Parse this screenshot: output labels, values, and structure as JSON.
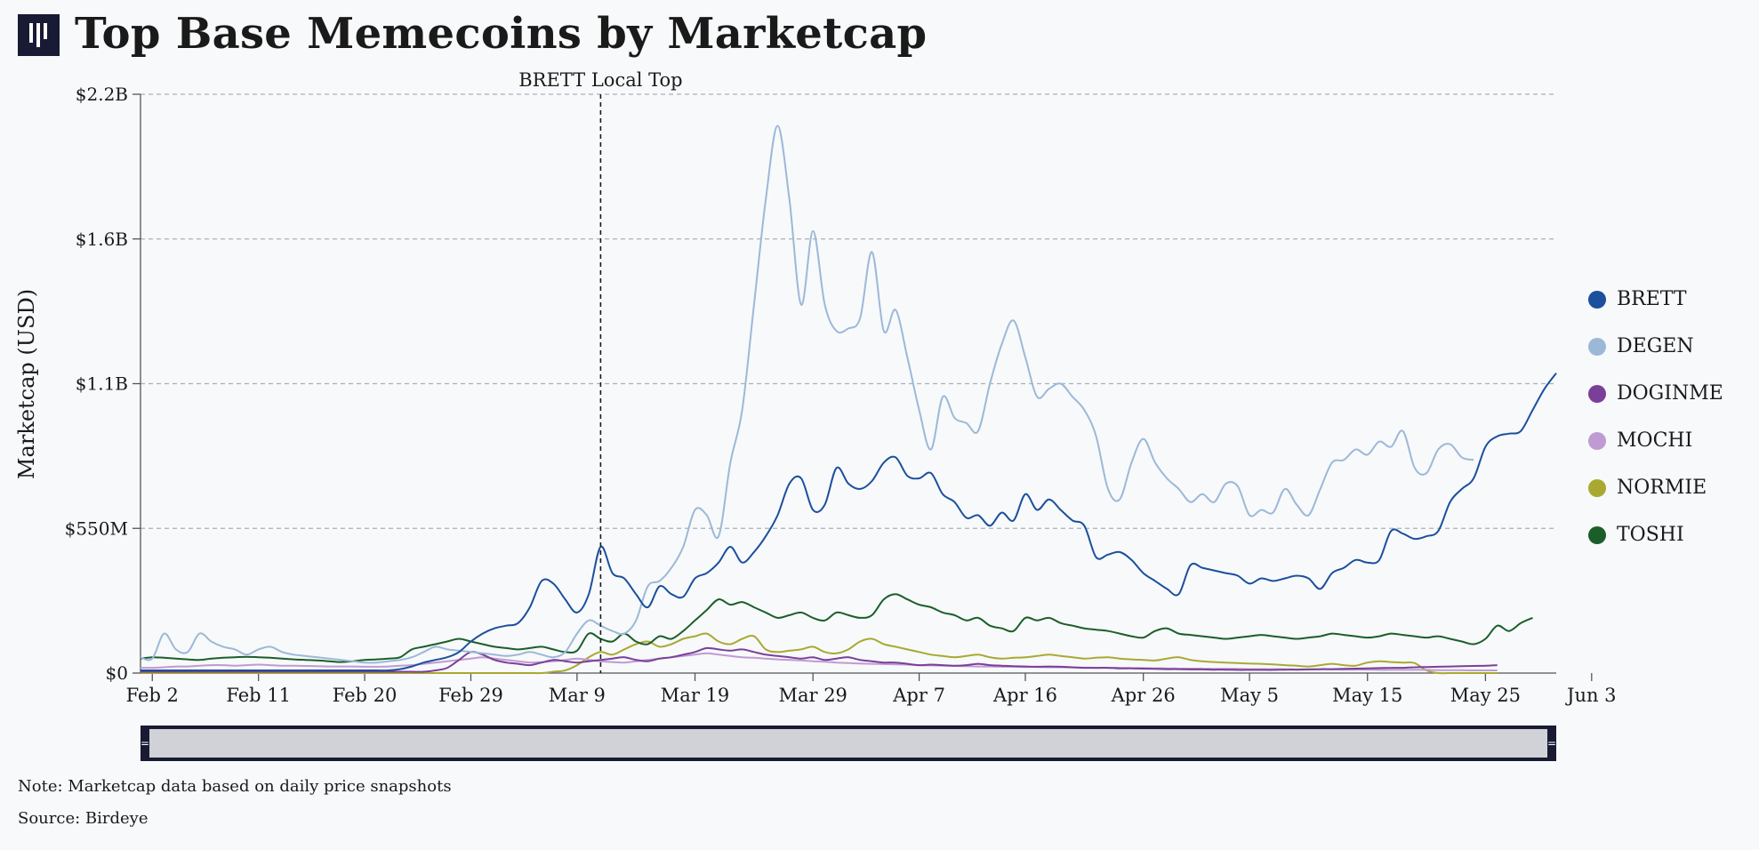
{
  "title": "Top Base Memecoins by Marketcap",
  "note": "Note: Marketcap data based on daily price snapshots",
  "source": "Source: Birdeye",
  "chart_data": {
    "type": "line",
    "title": "Top Base Memecoins by Marketcap",
    "ylabel": "Marketcap (USD)",
    "xlabel": "",
    "ylim": [
      0,
      2200000000
    ],
    "y_ticks": [
      {
        "value": 0,
        "label": "$0"
      },
      {
        "value": 550000000,
        "label": "$550M"
      },
      {
        "value": 1100000000,
        "label": "$1.1B"
      },
      {
        "value": 1650000000,
        "label": "$1.6B"
      },
      {
        "value": 2200000000,
        "label": "$2.2B"
      }
    ],
    "x_start": "2024-02-01",
    "x_ticks": [
      "Feb 2",
      "Feb 11",
      "Feb 20",
      "Feb 29",
      "Mar 9",
      "Mar 19",
      "Mar 29",
      "Apr 7",
      "Apr 16",
      "Apr 26",
      "May 5",
      "May 15",
      "May 25",
      "Jun 3"
    ],
    "grid": "horizontal dashed",
    "legend_position": "right",
    "annotation": {
      "date": "2024-03-11",
      "label": "BRETT Local Top"
    },
    "series": [
      {
        "name": "BRETT",
        "color": "#1c4f9c",
        "values": [
          10000000,
          10000000,
          10000000,
          10000000,
          10000000,
          10000000,
          10000000,
          10000000,
          10000000,
          10000000,
          10000000,
          10000000,
          10000000,
          10000000,
          10000000,
          10000000,
          10000000,
          10000000,
          10000000,
          10000000,
          10000000,
          10000000,
          15000000,
          25000000,
          40000000,
          50000000,
          60000000,
          80000000,
          120000000,
          150000000,
          170000000,
          180000000,
          190000000,
          250000000,
          350000000,
          340000000,
          280000000,
          230000000,
          300000000,
          480000000,
          380000000,
          360000000,
          300000000,
          250000000,
          330000000,
          300000000,
          290000000,
          360000000,
          380000000,
          420000000,
          480000000,
          420000000,
          460000000,
          520000000,
          600000000,
          720000000,
          740000000,
          620000000,
          640000000,
          780000000,
          720000000,
          700000000,
          730000000,
          800000000,
          820000000,
          750000000,
          740000000,
          760000000,
          680000000,
          650000000,
          590000000,
          600000000,
          560000000,
          610000000,
          580000000,
          680000000,
          620000000,
          660000000,
          620000000,
          580000000,
          560000000,
          440000000,
          450000000,
          460000000,
          430000000,
          380000000,
          350000000,
          320000000,
          300000000,
          410000000,
          400000000,
          390000000,
          380000000,
          370000000,
          340000000,
          360000000,
          350000000,
          360000000,
          370000000,
          360000000,
          320000000,
          380000000,
          400000000,
          430000000,
          420000000,
          430000000,
          540000000,
          530000000,
          510000000,
          520000000,
          540000000,
          650000000,
          700000000,
          740000000,
          860000000,
          900000000,
          910000000,
          920000000,
          1000000000,
          1080000000,
          1140000000
        ]
      },
      {
        "name": "DEGEN",
        "color": "#9db8d7",
        "values": [
          60000000,
          55000000,
          150000000,
          90000000,
          80000000,
          150000000,
          120000000,
          100000000,
          90000000,
          70000000,
          90000000,
          100000000,
          80000000,
          70000000,
          65000000,
          60000000,
          55000000,
          50000000,
          45000000,
          40000000,
          40000000,
          45000000,
          50000000,
          60000000,
          80000000,
          100000000,
          90000000,
          85000000,
          80000000,
          75000000,
          70000000,
          65000000,
          70000000,
          80000000,
          70000000,
          60000000,
          80000000,
          150000000,
          200000000,
          180000000,
          160000000,
          150000000,
          200000000,
          330000000,
          350000000,
          400000000,
          480000000,
          620000000,
          600000000,
          520000000,
          800000000,
          1000000000,
          1400000000,
          1800000000,
          2080000000,
          1800000000,
          1400000000,
          1680000000,
          1400000000,
          1300000000,
          1310000000,
          1350000000,
          1600000000,
          1300000000,
          1380000000,
          1200000000,
          1000000000,
          850000000,
          1050000000,
          970000000,
          950000000,
          920000000,
          1100000000,
          1250000000,
          1340000000,
          1200000000,
          1050000000,
          1080000000,
          1100000000,
          1050000000,
          1000000000,
          900000000,
          700000000,
          660000000,
          800000000,
          890000000,
          800000000,
          740000000,
          700000000,
          650000000,
          680000000,
          650000000,
          720000000,
          710000000,
          600000000,
          620000000,
          610000000,
          700000000,
          640000000,
          600000000,
          700000000,
          800000000,
          810000000,
          850000000,
          830000000,
          880000000,
          860000000,
          920000000,
          780000000,
          760000000,
          850000000,
          870000000,
          820000000,
          810000000
        ]
      },
      {
        "name": "DOGINME",
        "color": "#7b3f98",
        "values": [
          5000000,
          5000000,
          5000000,
          5000000,
          5000000,
          5000000,
          5000000,
          5000000,
          5000000,
          5000000,
          5000000,
          5000000,
          5000000,
          5000000,
          5000000,
          5000000,
          5000000,
          5000000,
          5000000,
          5000000,
          5000000,
          5000000,
          5000000,
          5000000,
          5000000,
          10000000,
          20000000,
          50000000,
          80000000,
          70000000,
          50000000,
          40000000,
          35000000,
          30000000,
          40000000,
          50000000,
          45000000,
          40000000,
          45000000,
          50000000,
          55000000,
          60000000,
          50000000,
          45000000,
          55000000,
          60000000,
          70000000,
          80000000,
          95000000,
          90000000,
          85000000,
          90000000,
          80000000,
          70000000,
          65000000,
          60000000,
          55000000,
          60000000,
          50000000,
          55000000,
          60000000,
          50000000,
          45000000,
          40000000,
          40000000,
          35000000,
          30000000,
          32000000,
          30000000,
          28000000,
          30000000,
          35000000,
          30000000,
          28000000,
          26000000,
          25000000,
          24000000,
          25000000,
          24000000,
          22000000,
          20000000,
          20000000,
          20000000,
          18000000,
          18000000,
          17000000,
          16000000,
          15000000,
          15000000,
          14000000,
          14000000,
          13000000,
          13000000,
          12000000,
          12000000,
          12000000,
          12000000,
          13000000,
          13000000,
          14000000,
          15000000,
          15000000,
          16000000,
          17000000,
          18000000,
          19000000,
          20000000,
          20000000,
          22000000,
          23000000,
          24000000,
          25000000,
          26000000,
          27000000,
          28000000,
          30000000
        ]
      },
      {
        "name": "MOCHI",
        "color": "#bf9bd1",
        "values": [
          20000000,
          20000000,
          22000000,
          25000000,
          25000000,
          28000000,
          30000000,
          30000000,
          28000000,
          30000000,
          32000000,
          30000000,
          28000000,
          28000000,
          27000000,
          26000000,
          25000000,
          25000000,
          25000000,
          24000000,
          24000000,
          25000000,
          28000000,
          30000000,
          35000000,
          40000000,
          45000000,
          50000000,
          55000000,
          60000000,
          55000000,
          50000000,
          45000000,
          40000000,
          42000000,
          45000000,
          50000000,
          55000000,
          50000000,
          45000000,
          42000000,
          40000000,
          45000000,
          50000000,
          55000000,
          60000000,
          65000000,
          70000000,
          75000000,
          70000000,
          65000000,
          60000000,
          58000000,
          55000000,
          52000000,
          50000000,
          48000000,
          45000000,
          43000000,
          40000000,
          38000000,
          36000000,
          35000000,
          34000000,
          33000000,
          32000000,
          30000000,
          29000000,
          28000000,
          27000000,
          26000000,
          25000000,
          25000000,
          24000000,
          24000000,
          23000000,
          23000000,
          22000000,
          22000000,
          21000000,
          21000000,
          20000000,
          20000000,
          20000000,
          19000000,
          19000000,
          18000000,
          18000000,
          17000000,
          17000000,
          17000000,
          16000000,
          16000000,
          16000000,
          15000000,
          15000000,
          15000000,
          15000000,
          14000000,
          14000000,
          14000000,
          14000000,
          13000000,
          13000000,
          13000000,
          12000000,
          12000000,
          12000000,
          12000000,
          12000000,
          11000000,
          11000000,
          11000000,
          10000000,
          10000000,
          10000000
        ]
      },
      {
        "name": "NORMIE",
        "color": "#a9a931",
        "values": [
          0,
          0,
          0,
          0,
          0,
          0,
          0,
          0,
          0,
          0,
          0,
          0,
          0,
          0,
          0,
          0,
          0,
          0,
          0,
          0,
          0,
          0,
          0,
          0,
          0,
          0,
          0,
          0,
          0,
          0,
          0,
          0,
          0,
          0,
          0,
          5000000,
          10000000,
          30000000,
          60000000,
          80000000,
          70000000,
          90000000,
          110000000,
          120000000,
          100000000,
          110000000,
          130000000,
          140000000,
          150000000,
          120000000,
          110000000,
          130000000,
          140000000,
          90000000,
          80000000,
          85000000,
          90000000,
          100000000,
          80000000,
          75000000,
          90000000,
          120000000,
          130000000,
          110000000,
          100000000,
          90000000,
          80000000,
          70000000,
          65000000,
          60000000,
          65000000,
          70000000,
          60000000,
          55000000,
          58000000,
          60000000,
          65000000,
          70000000,
          65000000,
          60000000,
          55000000,
          58000000,
          60000000,
          55000000,
          52000000,
          50000000,
          48000000,
          55000000,
          60000000,
          50000000,
          45000000,
          42000000,
          40000000,
          38000000,
          36000000,
          35000000,
          33000000,
          30000000,
          28000000,
          25000000,
          30000000,
          35000000,
          30000000,
          28000000,
          40000000,
          45000000,
          42000000,
          40000000,
          38000000,
          10000000,
          0,
          0,
          0,
          0,
          0,
          0
        ]
      },
      {
        "name": "TOSHI",
        "color": "#1b5e2a",
        "values": [
          55000000,
          60000000,
          58000000,
          55000000,
          52000000,
          50000000,
          55000000,
          58000000,
          60000000,
          62000000,
          60000000,
          58000000,
          55000000,
          52000000,
          50000000,
          48000000,
          45000000,
          42000000,
          45000000,
          50000000,
          52000000,
          55000000,
          60000000,
          90000000,
          100000000,
          110000000,
          120000000,
          130000000,
          120000000,
          110000000,
          100000000,
          95000000,
          90000000,
          95000000,
          100000000,
          90000000,
          80000000,
          85000000,
          150000000,
          130000000,
          120000000,
          150000000,
          120000000,
          110000000,
          140000000,
          130000000,
          160000000,
          200000000,
          240000000,
          280000000,
          260000000,
          270000000,
          250000000,
          230000000,
          210000000,
          220000000,
          230000000,
          210000000,
          200000000,
          230000000,
          220000000,
          210000000,
          220000000,
          280000000,
          300000000,
          280000000,
          260000000,
          250000000,
          230000000,
          220000000,
          200000000,
          210000000,
          180000000,
          170000000,
          160000000,
          210000000,
          200000000,
          210000000,
          190000000,
          180000000,
          170000000,
          165000000,
          160000000,
          150000000,
          140000000,
          135000000,
          160000000,
          170000000,
          150000000,
          145000000,
          140000000,
          135000000,
          130000000,
          135000000,
          140000000,
          145000000,
          140000000,
          135000000,
          130000000,
          135000000,
          140000000,
          150000000,
          145000000,
          140000000,
          135000000,
          140000000,
          150000000,
          145000000,
          140000000,
          135000000,
          140000000,
          130000000,
          120000000,
          110000000,
          130000000,
          180000000,
          160000000,
          190000000,
          210000000
        ]
      }
    ]
  }
}
